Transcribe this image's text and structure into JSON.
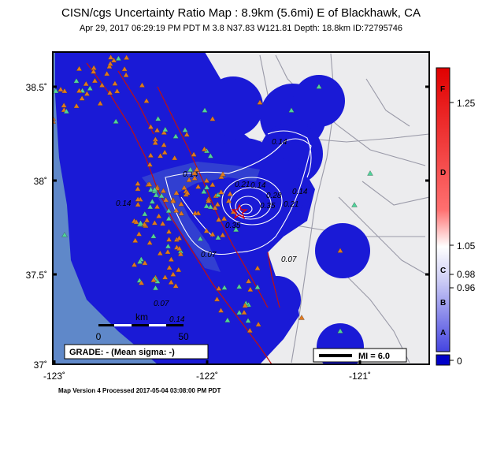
{
  "header": {
    "title": "CISN/cgs Uncertainty Ratio Map : 8.9km (5.6mi) E of Blackhawk, CA",
    "subtitle": "Apr 29, 2017 06:29:19 PM PDT   M 3.8   N37.83 W121.81   Depth: 18.8km   ID:72795746"
  },
  "axes": {
    "lat_ticks": [
      "38.5˚",
      "38˚",
      "37.5˚",
      "37˚"
    ],
    "lon_ticks": [
      "-123˚",
      "-122˚",
      "-121˚"
    ]
  },
  "contours": {
    "labels": [
      "0.14",
      "0.14",
      "0.14",
      "0.21",
      "0.28",
      "0.35",
      "0.14",
      "0.21",
      "0.35",
      "0.14",
      "0.07",
      "0.07",
      "0.14",
      "0.07"
    ]
  },
  "scalebar": {
    "unit": "km",
    "start": "0",
    "end": "50"
  },
  "grade_box": {
    "text": "GRADE: - (Mean sigma: -)"
  },
  "mi_legend": {
    "text": "MI = 6.0"
  },
  "footer": {
    "text": "Map Version 4 Processed 2017-05-04 03:08:00 PM PDT"
  },
  "colorbar": {
    "letters": [
      "F",
      "D",
      "C",
      "B",
      "A"
    ],
    "values": [
      "1.25",
      "1.05",
      "0.98",
      "0.96",
      "0"
    ],
    "colors": {
      "top": "#e00000",
      "mid": "#ffffff",
      "bottom": "#0000c8"
    }
  },
  "colors": {
    "water": "#5f88c9",
    "land": "#ececee",
    "uncertainty_fill": "#1a1ad6",
    "station_orange": "#e0781e",
    "station_green": "#4fd39a",
    "fault": "#c01010",
    "road": "#9a9aa8"
  },
  "icons": {
    "station": "triangle-icon",
    "epicenter": "star-icon"
  }
}
